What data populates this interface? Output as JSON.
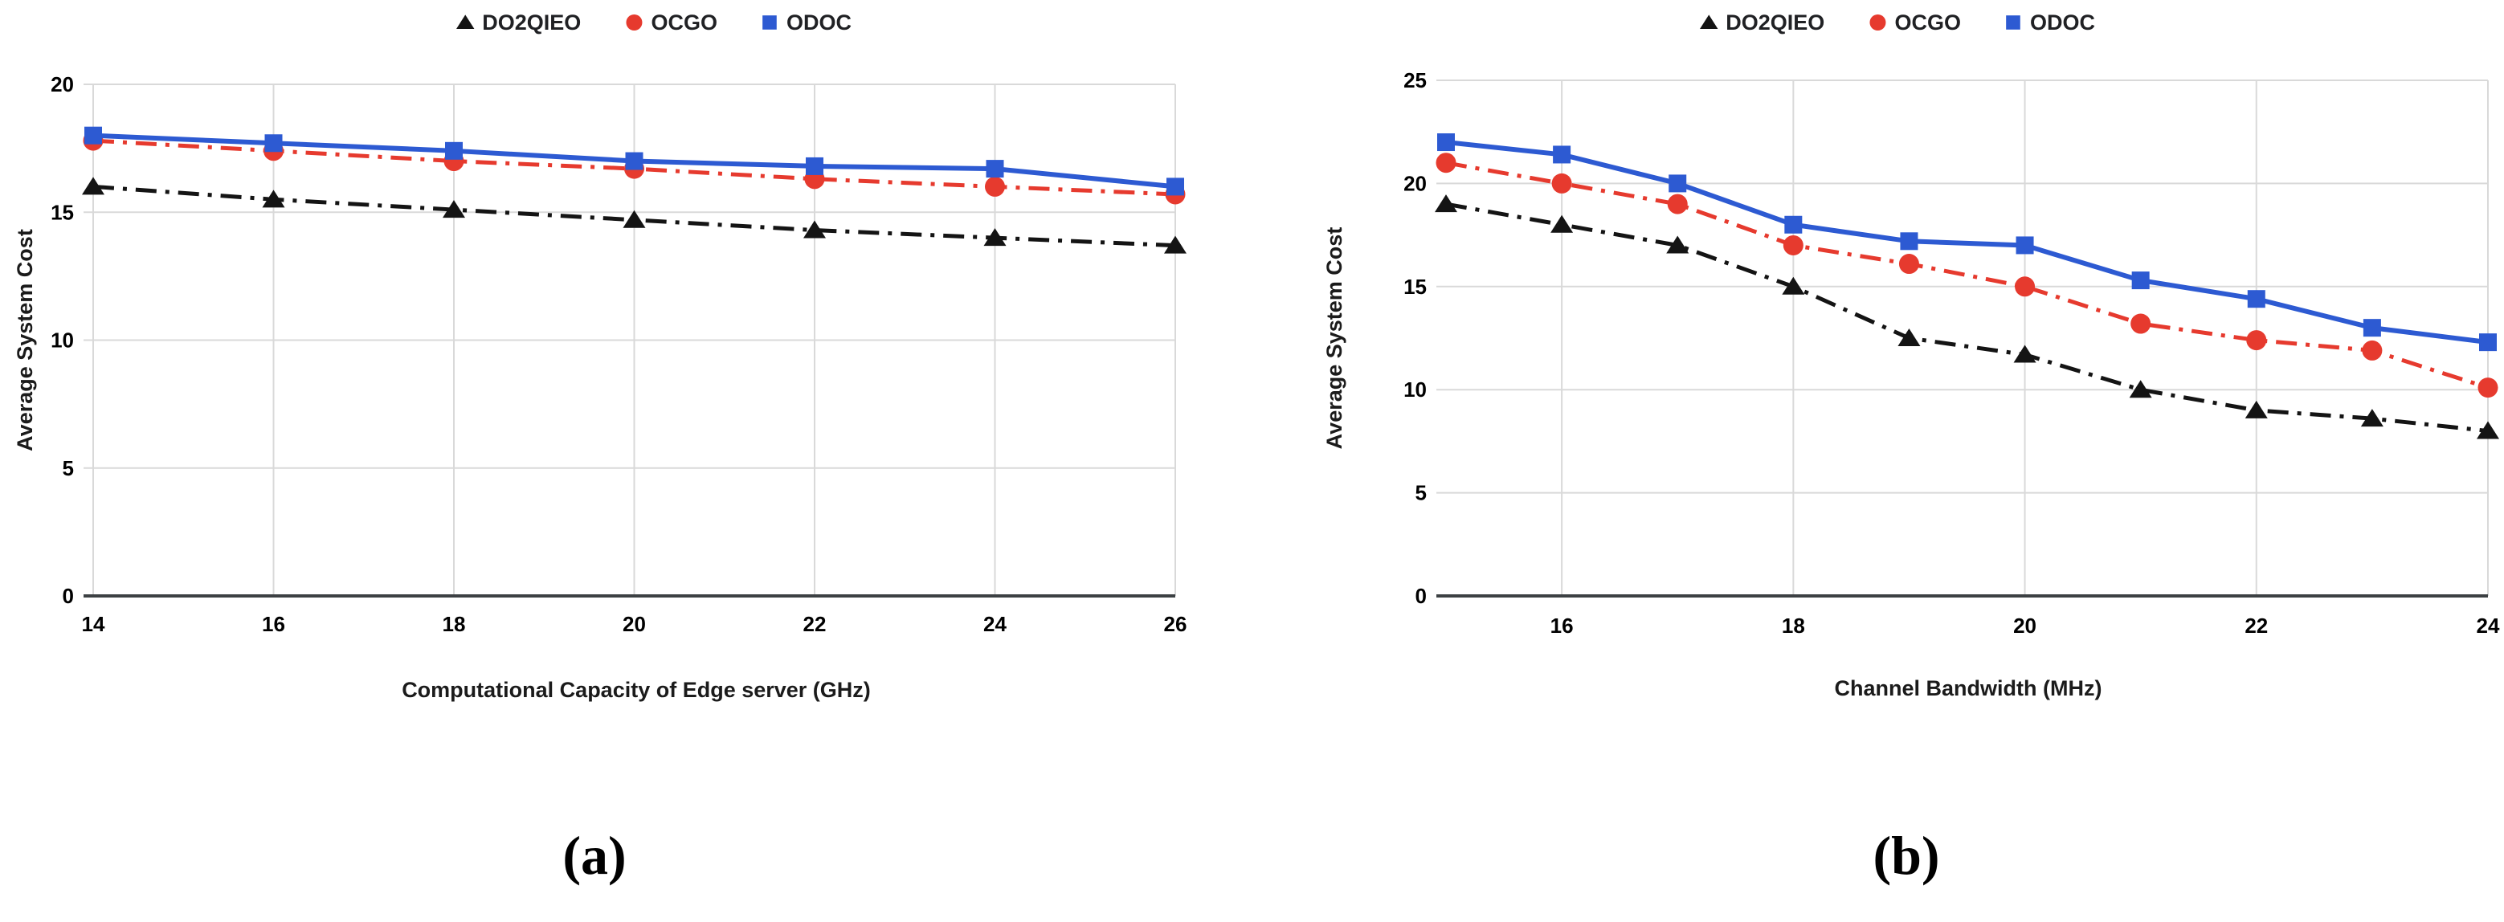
{
  "theme": {
    "background": "#ffffff",
    "grid_color": "#d9d9d9",
    "axis_color": "#3c4043",
    "tick_color": "#000000",
    "series_colors": {
      "DO2QIEO": "#141414",
      "OCGO": "#e63a2e",
      "ODOC": "#2d5ad2"
    }
  },
  "captions": {
    "a": "(a)",
    "b": "(b)"
  },
  "legend": {
    "items": [
      "DO2QIEO",
      "OCGO",
      "ODOC"
    ],
    "position": "top-center"
  },
  "chart_data": [
    {
      "id": "a",
      "type": "line",
      "title": "",
      "xlabel": "Computational Capacity of Edge server (GHz)",
      "ylabel": "Average System Cost",
      "x": [
        14,
        16,
        18,
        20,
        22,
        24,
        26
      ],
      "x_ticks": [
        14,
        16,
        18,
        20,
        22,
        24,
        26
      ],
      "xlim": [
        14,
        26
      ],
      "y_ticks": [
        0,
        5,
        10,
        15,
        20
      ],
      "ylim": [
        0,
        20
      ],
      "grid": true,
      "legend_position": "top-center",
      "series": [
        {
          "name": "DO2QIEO",
          "marker": "triangle",
          "line": "dashdot",
          "color": "#141414",
          "values": [
            16.0,
            15.5,
            15.1,
            14.7,
            14.3,
            14.0,
            13.7
          ]
        },
        {
          "name": "OCGO",
          "marker": "circle",
          "line": "dashdot",
          "color": "#e63a2e",
          "values": [
            17.8,
            17.4,
            17.0,
            16.7,
            16.3,
            16.0,
            15.7
          ]
        },
        {
          "name": "ODOC",
          "marker": "square",
          "line": "solid",
          "color": "#2d5ad2",
          "values": [
            18.0,
            17.7,
            17.4,
            17.0,
            16.8,
            16.7,
            16.0
          ]
        }
      ]
    },
    {
      "id": "b",
      "type": "line",
      "title": "",
      "xlabel": "Channel Bandwidth (MHz)",
      "ylabel": "Average System Cost",
      "x": [
        15,
        16,
        17,
        18,
        19,
        20,
        21,
        22,
        23,
        24
      ],
      "x_ticks": [
        16,
        18,
        20,
        22,
        24
      ],
      "xlim": [
        15,
        24
      ],
      "y_ticks": [
        0,
        5,
        10,
        15,
        20,
        25
      ],
      "ylim": [
        0,
        25
      ],
      "grid": true,
      "legend_position": "top-center",
      "series": [
        {
          "name": "DO2QIEO",
          "marker": "triangle",
          "line": "dashdot",
          "color": "#141414",
          "values": [
            19.0,
            18.0,
            17.0,
            15.0,
            12.5,
            11.7,
            10.0,
            9.0,
            8.6,
            8.0
          ]
        },
        {
          "name": "OCGO",
          "marker": "circle",
          "line": "dashdot",
          "color": "#e63a2e",
          "values": [
            21.0,
            20.0,
            19.0,
            17.0,
            16.1,
            15.0,
            13.2,
            12.4,
            11.9,
            10.1
          ]
        },
        {
          "name": "ODOC",
          "marker": "square",
          "line": "solid",
          "color": "#2d5ad2",
          "values": [
            22.0,
            21.4,
            20.0,
            18.0,
            17.2,
            17.0,
            15.3,
            14.4,
            13.0,
            12.3
          ]
        }
      ]
    }
  ]
}
